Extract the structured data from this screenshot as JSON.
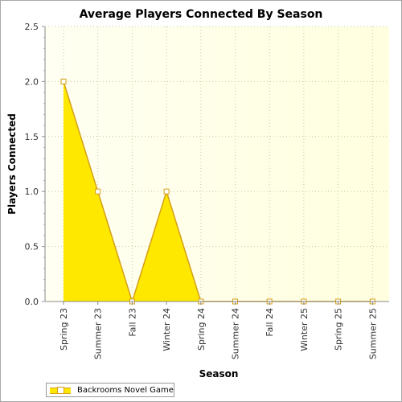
{
  "chart_data": {
    "type": "area",
    "title": "Average Players Connected By Season",
    "xlabel": "Season",
    "ylabel": "Players Connected",
    "categories": [
      "Spring 23",
      "Summer 23",
      "Fall 23",
      "Winter 24",
      "Spring 24",
      "Summer 24",
      "Fall 24",
      "Winter 25",
      "Spring 25",
      "Summer 25"
    ],
    "series": [
      {
        "name": "Backrooms Novel Game",
        "values": [
          2.0,
          1.0,
          0.0,
          1.0,
          0.0,
          0.0,
          0.0,
          0.0,
          0.0,
          0.0
        ]
      }
    ],
    "ylim": [
      0,
      2.5
    ],
    "yticks": [
      "0.0",
      "0.5",
      "1.0",
      "1.5",
      "2.0",
      "2.5"
    ],
    "grid": true,
    "legend_position": "bottom-left",
    "colors": {
      "area_fill": "#ffe800",
      "area_stroke": "#d4a017",
      "plot_bg_start": "#fffff2",
      "plot_bg_end": "#ffffdf",
      "grid": "#c8c8a0"
    }
  }
}
